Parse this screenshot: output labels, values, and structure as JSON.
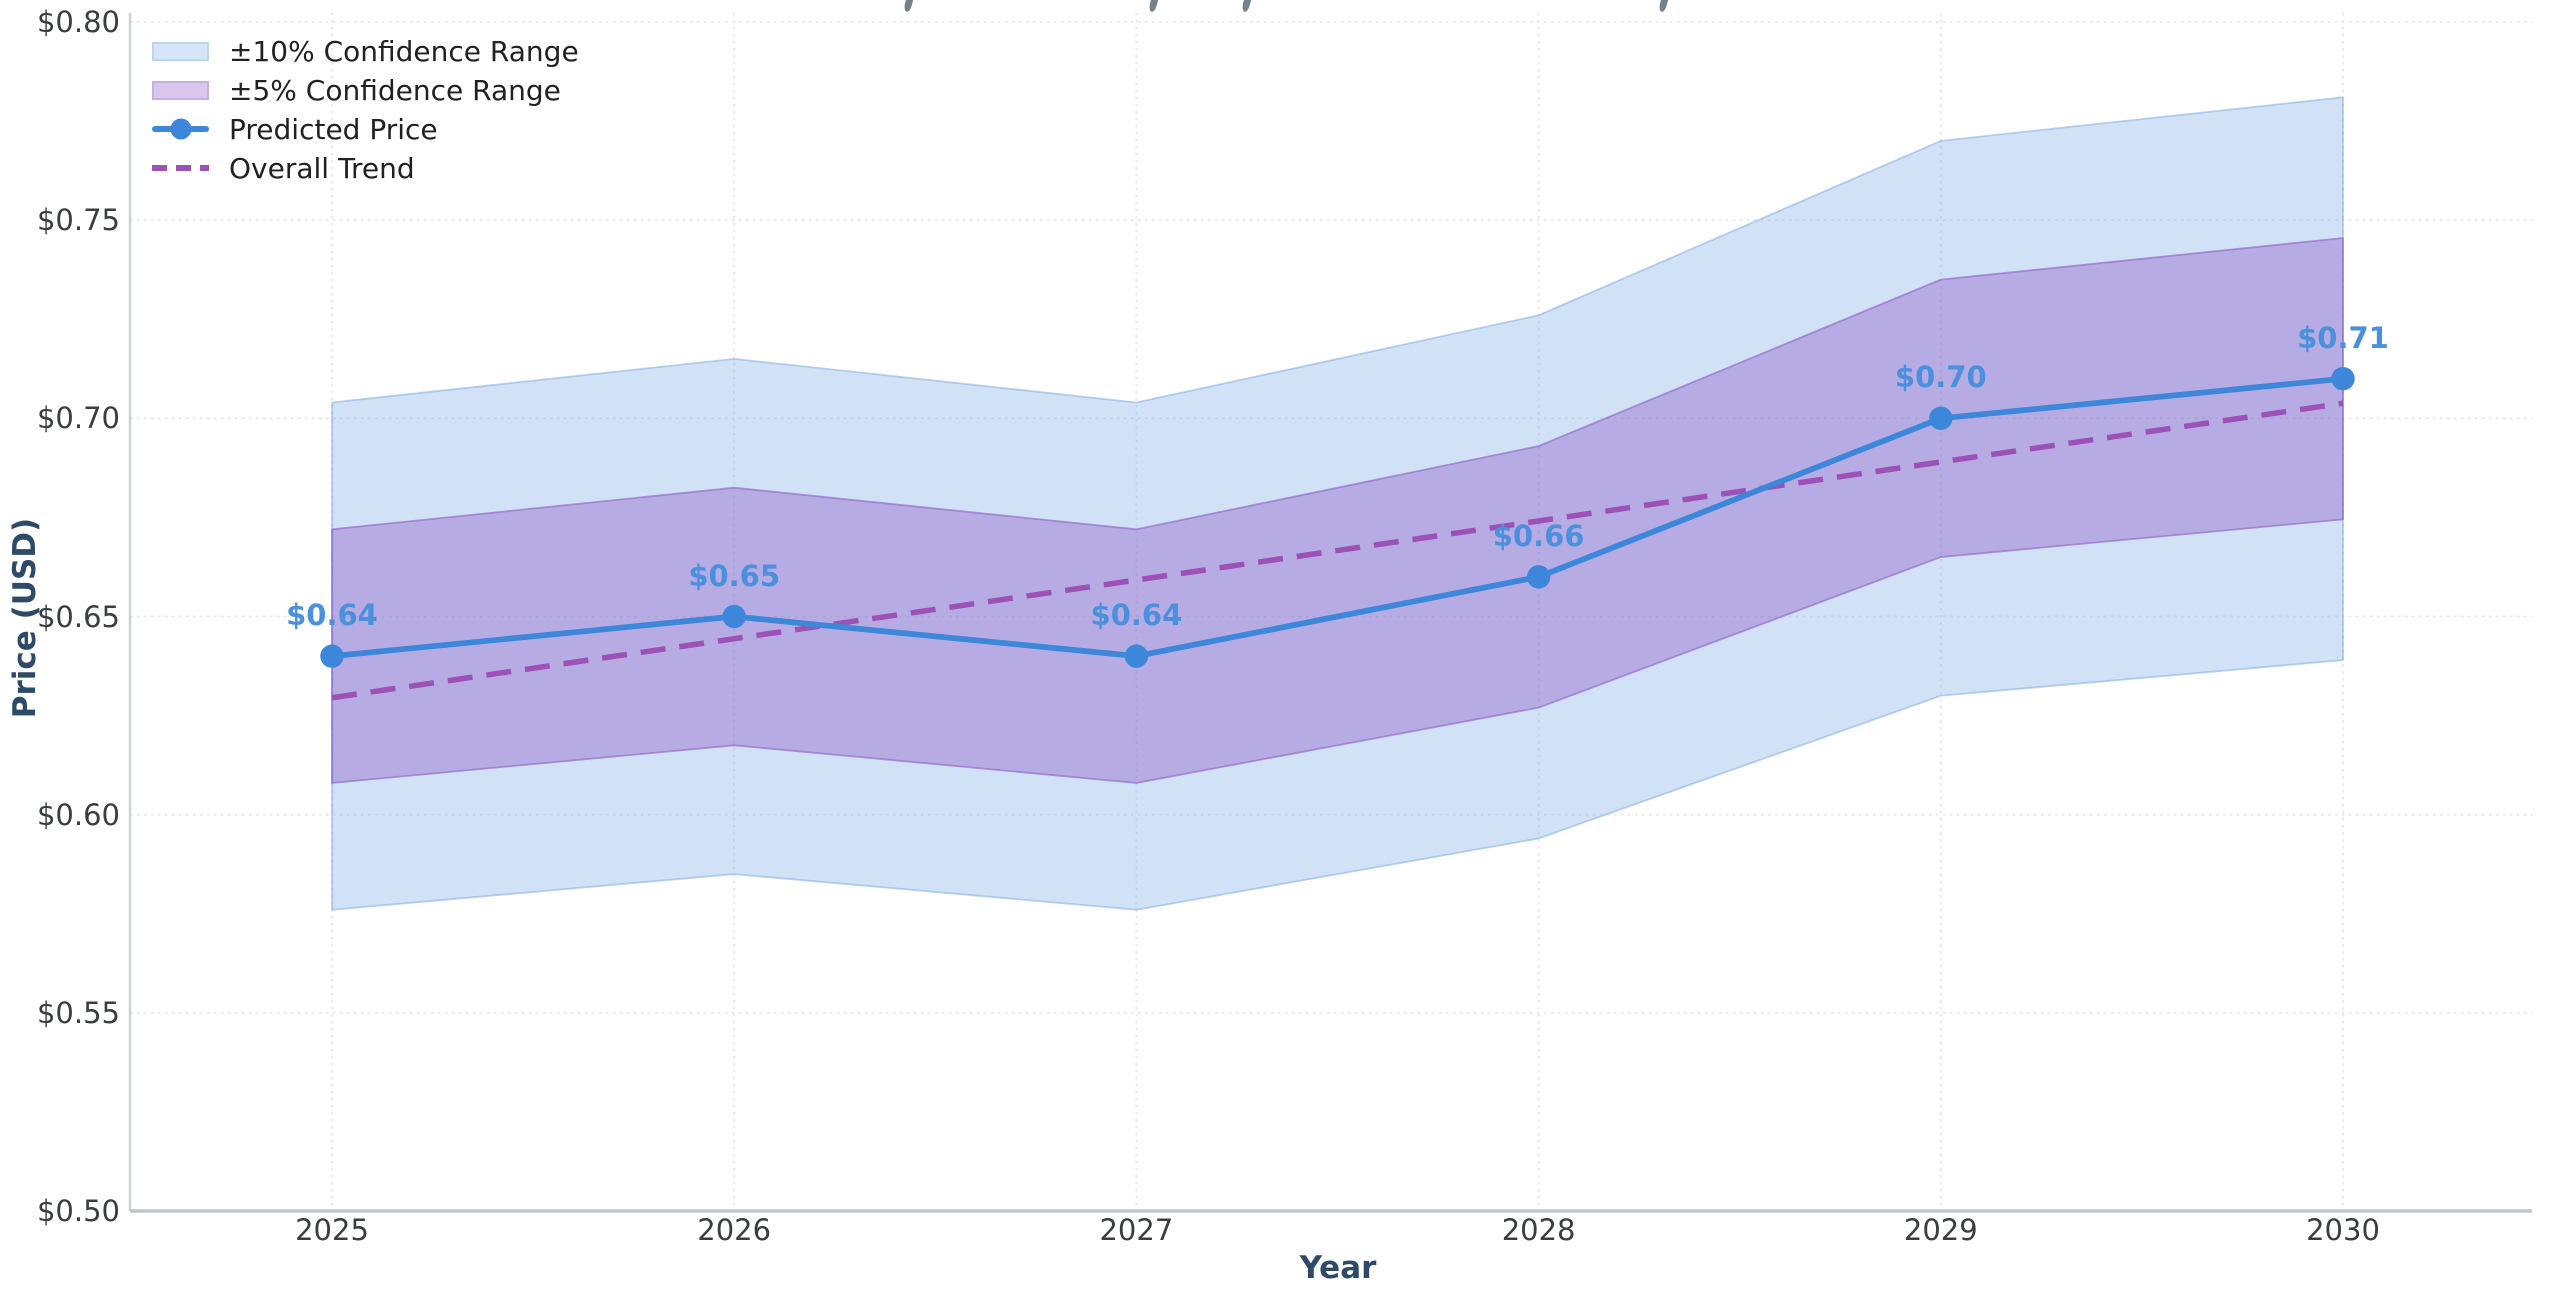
{
  "chart_data": {
    "type": "line",
    "title": "",
    "xlabel": "Year",
    "ylabel": "Price (USD)",
    "x": [
      "2025",
      "2026",
      "2027",
      "2028",
      "2029",
      "2030"
    ],
    "ylim": [
      0.5,
      0.8
    ],
    "ytick_values": [
      0.5,
      0.55,
      0.6,
      0.65,
      0.7,
      0.75,
      0.8
    ],
    "ytick_labels": [
      "$0.50",
      "$0.55",
      "$0.60",
      "$0.65",
      "$0.70",
      "$0.75",
      "$0.80"
    ],
    "grid": "dotted, horizontal and vertical, light gray",
    "series": [
      {
        "name": "Predicted Price",
        "type": "line-with-markers",
        "color": "#3c87d9",
        "values": [
          0.64,
          0.65,
          0.64,
          0.66,
          0.7,
          0.71
        ],
        "point_labels": [
          "$0.64",
          "$0.65",
          "$0.64",
          "$0.66",
          "$0.70",
          "$0.71"
        ]
      },
      {
        "name": "Overall Trend",
        "type": "dashed-line",
        "color": "#9b51b6",
        "values": [
          0.6295,
          0.6444,
          0.6592,
          0.6741,
          0.689,
          0.7038
        ]
      }
    ],
    "bands": [
      {
        "name": "±10% Confidence Range",
        "fill": "rgba(137,180,232,0.38)",
        "edge": "rgba(120,165,225,0.50)",
        "lower": [
          0.576,
          0.585,
          0.576,
          0.594,
          0.63,
          0.639
        ],
        "upper": [
          0.704,
          0.715,
          0.704,
          0.726,
          0.77,
          0.781
        ]
      },
      {
        "name": "±5% Confidence Range",
        "fill": "rgba(142,95,198,0.42)",
        "edge": "rgba(142,95,198,0.60)",
        "lower": [
          0.608,
          0.6175,
          0.608,
          0.627,
          0.665,
          0.6745
        ],
        "upper": [
          0.672,
          0.6825,
          0.672,
          0.693,
          0.735,
          0.7455
        ]
      }
    ],
    "legend": {
      "position": "upper-left",
      "items": [
        {
          "label": "±10% Confidence Range",
          "handle": "patch",
          "fill": "#d6e5f7",
          "edge": "#bcd4f0"
        },
        {
          "label": "±5% Confidence Range",
          "handle": "patch",
          "fill": "#d9c6ec",
          "edge": "#c9aee4"
        },
        {
          "label": "Predicted Price",
          "handle": "line-marker",
          "color": "#3c87d9"
        },
        {
          "label": "Overall Trend",
          "handle": "dashed-line",
          "color": "#9b51b6"
        }
      ]
    },
    "point_label_color": "#4a90dd",
    "axis_label_color": "#2d4a68",
    "tick_label_color": "#3a3e41",
    "grid_color": "#e5e7e9",
    "background": "#ffffff"
  }
}
